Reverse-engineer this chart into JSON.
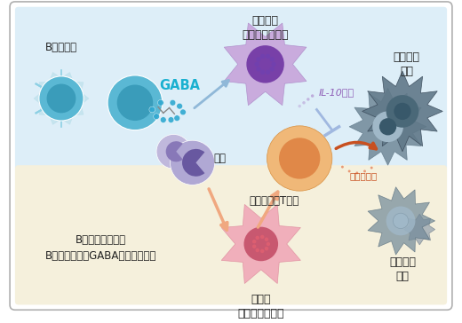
{
  "bg_color": "#ffffff",
  "top_panel_color": "#ddeef8",
  "bottom_panel_color": "#f5f0dc",
  "labels": {
    "b_cell_label": "B系統細胞",
    "gaba": "GABA",
    "anti_macro_label": "抗炎症性\nマクロファージ",
    "il10": "IL-10など",
    "tumor_grow_label": "腫瘍細胞\n増殖",
    "monocyte_label": "単球",
    "ctlabel": "細胞傷害性T細胞",
    "inflam_macro_label": "炎症性\nマクロファージ",
    "tumor_death_label": "腫瘍細胞\n死亡",
    "b_defect_label": "B細胞欠損または\nB細胞特異的にGABA合成酵素欠損",
    "killing_label": "殺傷性物質"
  },
  "colors": {
    "b_cell_light": "#8dd0e4",
    "b_cell_mid": "#5ab8d4",
    "b_cell_dark": "#3a9cba",
    "b_cell_spike": "#b0dce8",
    "gaba_text": "#1ab0d0",
    "gaba_dots": "#30a8d0",
    "anti_macro_star": "#c8a8dc",
    "anti_macro_nucleus": "#7840a8",
    "anti_macro_dots": "#7040b0",
    "il10_text": "#9060b8",
    "il10_dots": "#b090d0",
    "inhibit_arrow": "#a0b8e0",
    "tumor_spike1": "#607888",
    "tumor_body1": "#4a6878",
    "tumor_nucleus1": "#38586a",
    "tumor_spike2": "#708898",
    "tumor_body2": "#a0b8c8",
    "monocyte_light": "#b0a8d4",
    "monocyte_dark": "#8878b8",
    "monocyte_nuc": "#6858a0",
    "ctl_outer": "#f0b878",
    "ctl_inner": "#e08848",
    "inflam_star": "#f0a8b8",
    "inflam_nucleus": "#c85870",
    "inflam_dots": "#d06878",
    "arrow_blue": "#90b8d8",
    "arrow_salmon": "#f0a880",
    "arrow_red": "#c85020",
    "label_dark": "#222222"
  },
  "layout": {
    "fig_width": 5.2,
    "fig_height": 3.64,
    "dpi": 100
  }
}
